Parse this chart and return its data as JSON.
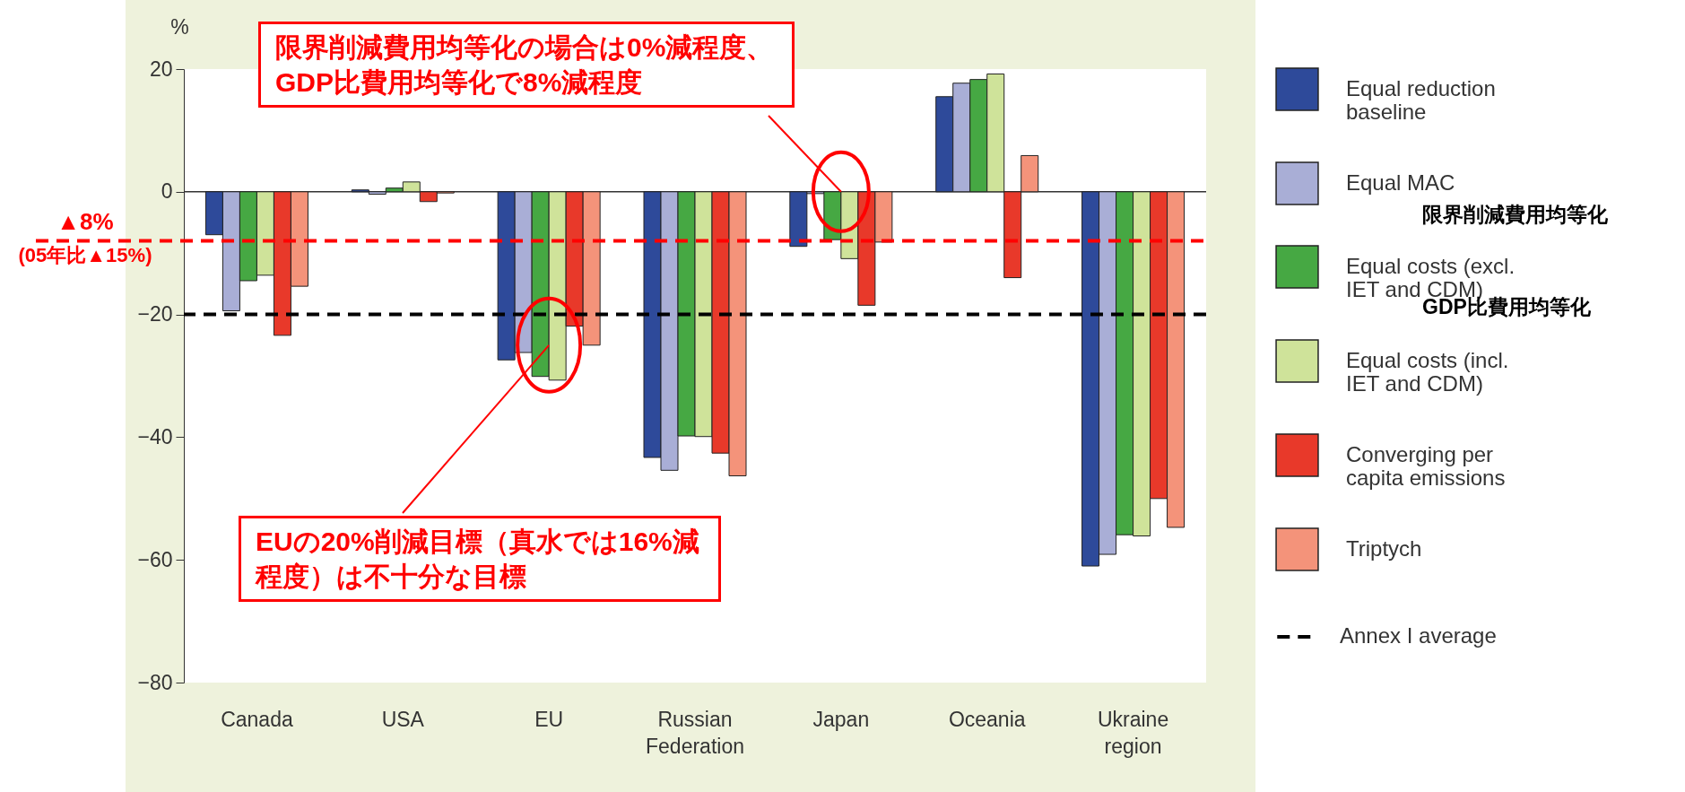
{
  "chart_data": {
    "type": "bar",
    "ylabel": "%",
    "categories": [
      "Canada",
      "USA",
      "EU",
      "Russian Federation",
      "Japan",
      "Oceania",
      "Ukraine region"
    ],
    "series": [
      {
        "name": "Equal reduction baseline",
        "color": "#2e4a9a",
        "values": [
          -7,
          0.3,
          -27.4,
          -43.3,
          -8.9,
          15.5,
          -61
        ]
      },
      {
        "name": "Equal MAC",
        "color": "#a9aed6",
        "values": [
          -19.4,
          -0.4,
          -26.2,
          -45.4,
          -0.3,
          17.7,
          -59.1
        ]
      },
      {
        "name": "Equal costs (excl. IET and CDM)",
        "color": "#46a843",
        "values": [
          -14.5,
          0.6,
          -30.1,
          -39.8,
          -7.8,
          18.3,
          -55.9
        ]
      },
      {
        "name": "Equal costs (incl. IET and CDM)",
        "color": "#cfe39a",
        "values": [
          -13.6,
          1.6,
          -30.7,
          -39.9,
          -10.9,
          19.2,
          -56.1
        ]
      },
      {
        "name": "Converging per capita emissions",
        "color": "#e8392a",
        "values": [
          -23.4,
          -1.6,
          -21.9,
          -42.6,
          -18.5,
          -14,
          -50
        ]
      },
      {
        "name": "Triptych",
        "color": "#f4937a",
        "values": [
          -15.4,
          -0.2,
          -25,
          -46.3,
          -8.2,
          5.9,
          -54.7
        ]
      }
    ],
    "ylim": [
      -80,
      20
    ],
    "yticks": [
      -80,
      -60,
      -40,
      -20,
      0,
      20
    ],
    "ref_lines": [
      {
        "axis": "y",
        "value": -8,
        "label": "▲8%\n(05年比▲15%)",
        "color": "#ff0000",
        "line_style": "dashed"
      },
      {
        "axis": "y",
        "value": -20,
        "label": "Annex I average",
        "color": "#000000",
        "line_style": "dashed"
      }
    ],
    "annotations": [
      {
        "text": "限界削減費用均等化の場合は0%減程度、GDP比費用均等化で8%減程度",
        "x": "Japan",
        "y": 0
      },
      {
        "text": "EUの20%削減目標（真水では16%減程度）は不十分な目標",
        "x": "EU",
        "y": -25
      },
      "限界削減費用均等化",
      "GDP比費用均等化"
    ],
    "legend": "right"
  }
}
